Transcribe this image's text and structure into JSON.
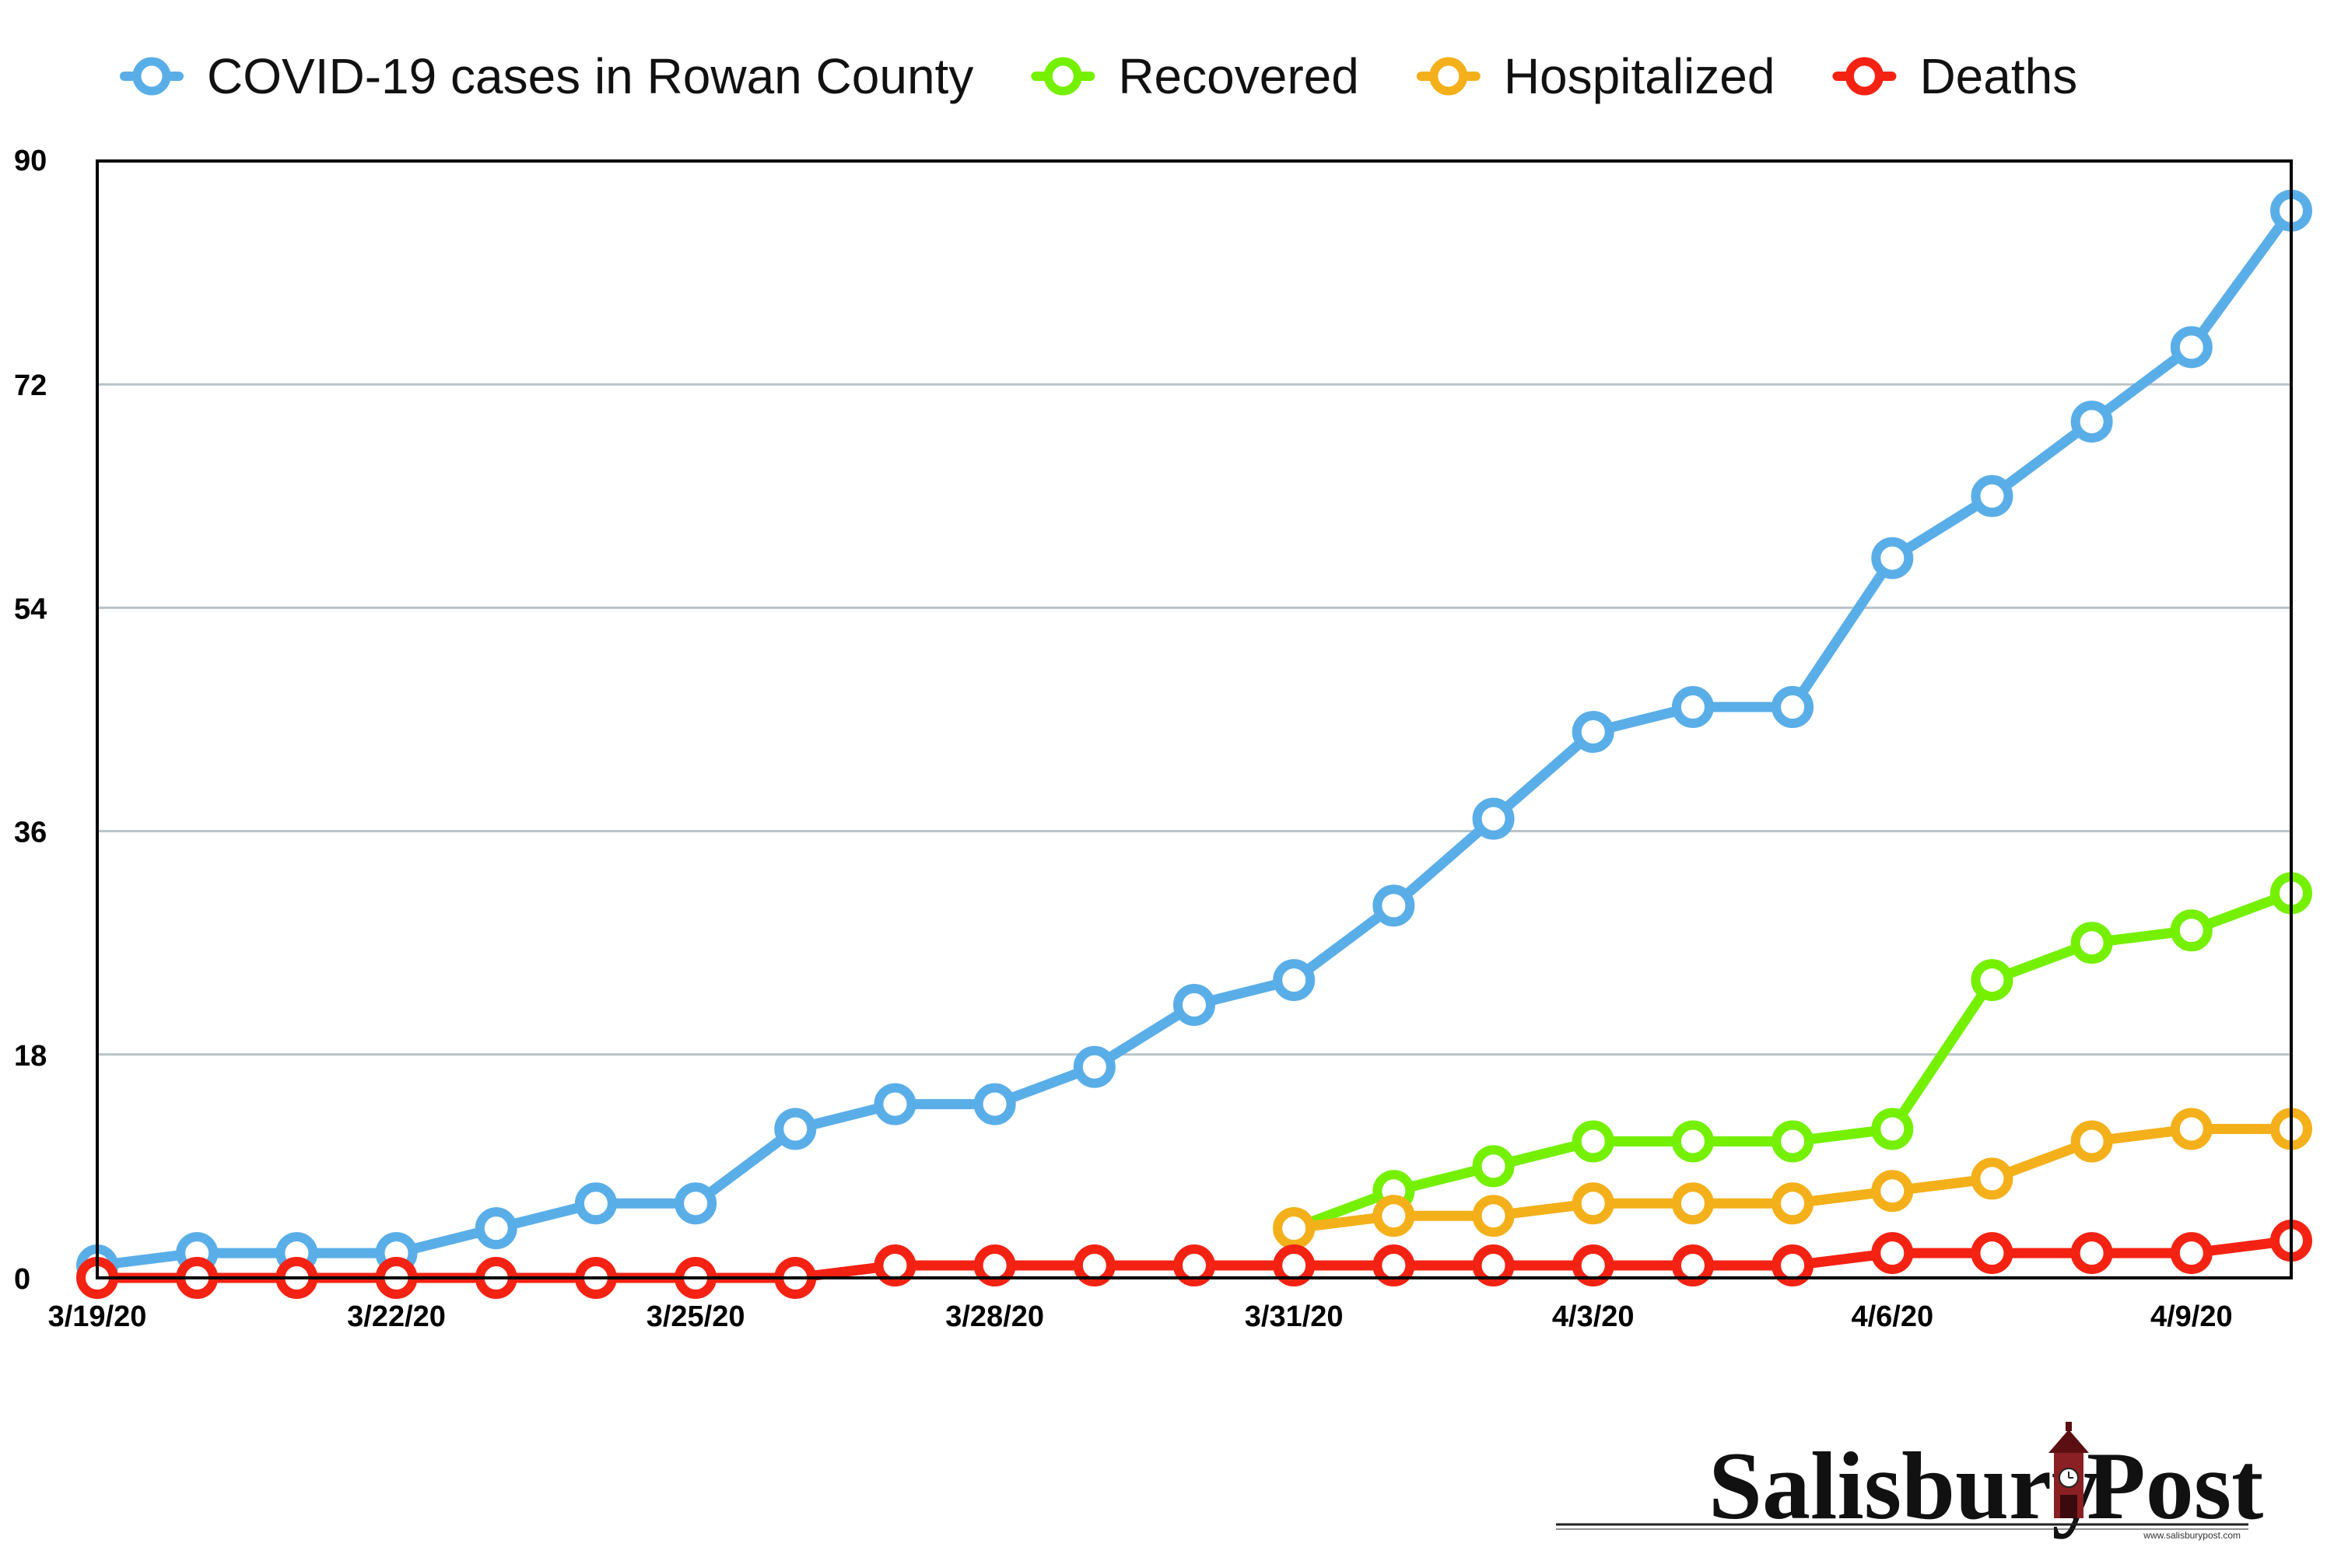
{
  "chart_data": {
    "type": "line",
    "title": "",
    "xlabel": "",
    "ylabel": "",
    "ylim": [
      0,
      90
    ],
    "yticks": [
      0,
      18,
      36,
      54,
      72,
      90
    ],
    "grid": true,
    "legend_position": "top",
    "categories": [
      "3/19/20",
      "3/20/20",
      "3/21/20",
      "3/22/20",
      "3/23/20",
      "3/24/20",
      "3/25/20",
      "3/26/20",
      "3/27/20",
      "3/28/20",
      "3/29/20",
      "3/30/20",
      "3/31/20",
      "4/1/20",
      "4/2/20",
      "4/3/20",
      "4/4/20",
      "4/5/20",
      "4/6/20",
      "4/7/20",
      "4/8/20",
      "4/9/20",
      "4/10/20"
    ],
    "tick_labels": [
      "3/19/20",
      "",
      "",
      "3/22/20",
      "",
      "",
      "3/25/20",
      "",
      "",
      "3/28/20",
      "",
      "",
      "3/31/20",
      "",
      "",
      "4/3/20",
      "",
      "",
      "4/6/20",
      "",
      "",
      "4/9/20",
      ""
    ],
    "series": [
      {
        "name": "COVID-19 cases in Rowan County",
        "color": "#5aaee8",
        "values": [
          1,
          2,
          2,
          2,
          4,
          6,
          6,
          12,
          14,
          14,
          17,
          22,
          24,
          30,
          37,
          44,
          46,
          46,
          58,
          63,
          69,
          75,
          86
        ]
      },
      {
        "name": "Recovered",
        "color": "#74f000",
        "values": [
          null,
          null,
          null,
          null,
          null,
          null,
          null,
          null,
          null,
          null,
          null,
          null,
          4,
          7,
          9,
          11,
          11,
          11,
          12,
          24,
          27,
          28,
          31
        ]
      },
      {
        "name": "Hospitalized",
        "color": "#f4b01a",
        "values": [
          null,
          null,
          null,
          null,
          null,
          null,
          null,
          null,
          null,
          null,
          null,
          null,
          4,
          5,
          5,
          6,
          6,
          6,
          7,
          8,
          11,
          12,
          12
        ]
      },
      {
        "name": "Deaths",
        "color": "#f42213",
        "values": [
          0,
          0,
          0,
          0,
          0,
          0,
          0,
          0,
          1,
          1,
          1,
          1,
          1,
          1,
          1,
          1,
          1,
          1,
          2,
          2,
          2,
          2,
          3
        ]
      }
    ]
  },
  "brand": {
    "name_left": "Salisbury",
    "name_right": "Post",
    "url": "www.salisburypost.com"
  }
}
